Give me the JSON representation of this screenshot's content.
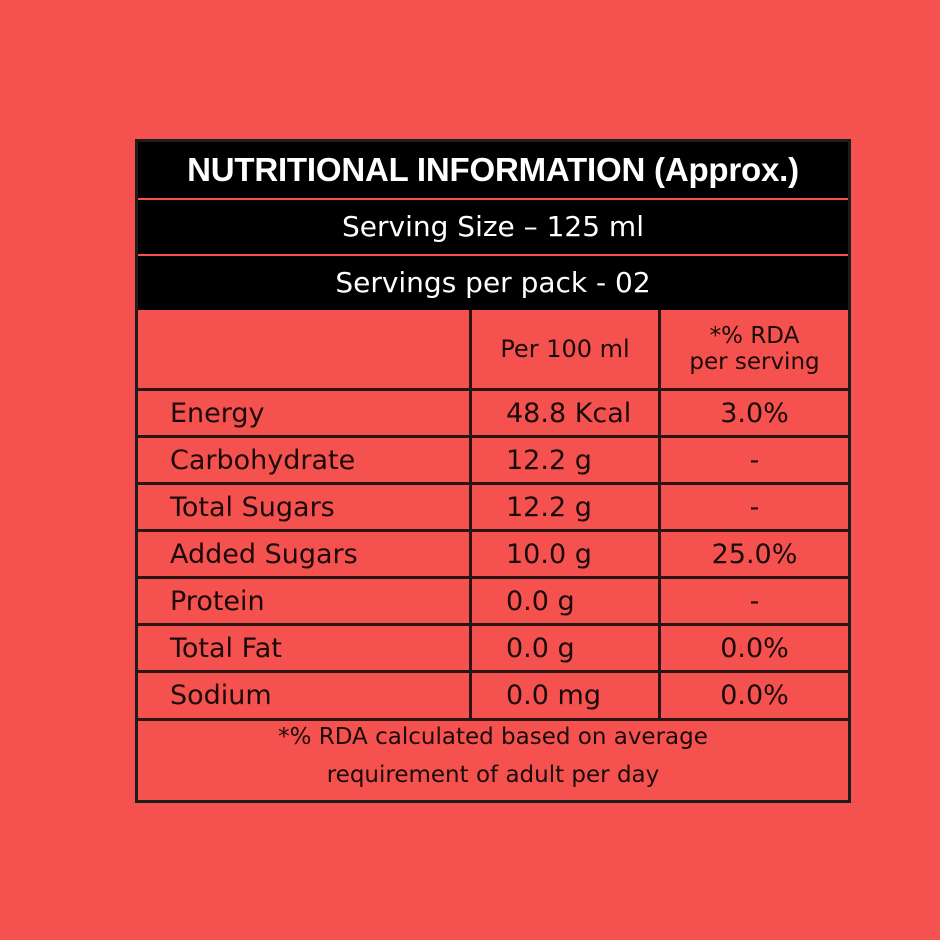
{
  "title": "NUTRITIONAL INFORMATION (Approx.)",
  "serving_size": "Serving Size – 125 ml",
  "servings_per_pack": "Servings per pack - 02",
  "table": {
    "headers": {
      "nutrient": "",
      "per_100ml": "Per 100 ml",
      "rda_line1": "*% RDA",
      "rda_line2": "per serving"
    },
    "rows": [
      {
        "nutrient": "Energy",
        "per_100ml": "48.8 Kcal",
        "rda": "3.0%"
      },
      {
        "nutrient": "Carbohydrate",
        "per_100ml": "12.2 g",
        "rda": "-"
      },
      {
        "nutrient": "Total Sugars",
        "per_100ml": "12.2 g",
        "rda": "-"
      },
      {
        "nutrient": "Added Sugars",
        "per_100ml": "10.0 g",
        "rda": "25.0%"
      },
      {
        "nutrient": "Protein",
        "per_100ml": "0.0 g",
        "rda": "-"
      },
      {
        "nutrient": "Total Fat",
        "per_100ml": "0.0 g",
        "rda": "0.0%"
      },
      {
        "nutrient": "Sodium",
        "per_100ml": "0.0 mg",
        "rda": "0.0%"
      }
    ]
  },
  "footnote": {
    "line1": "*% RDA calculated based on average",
    "line2": "requirement of adult per day"
  },
  "colors": {
    "background": "#f5524f",
    "band": "#000000",
    "border": "#2a1414"
  }
}
